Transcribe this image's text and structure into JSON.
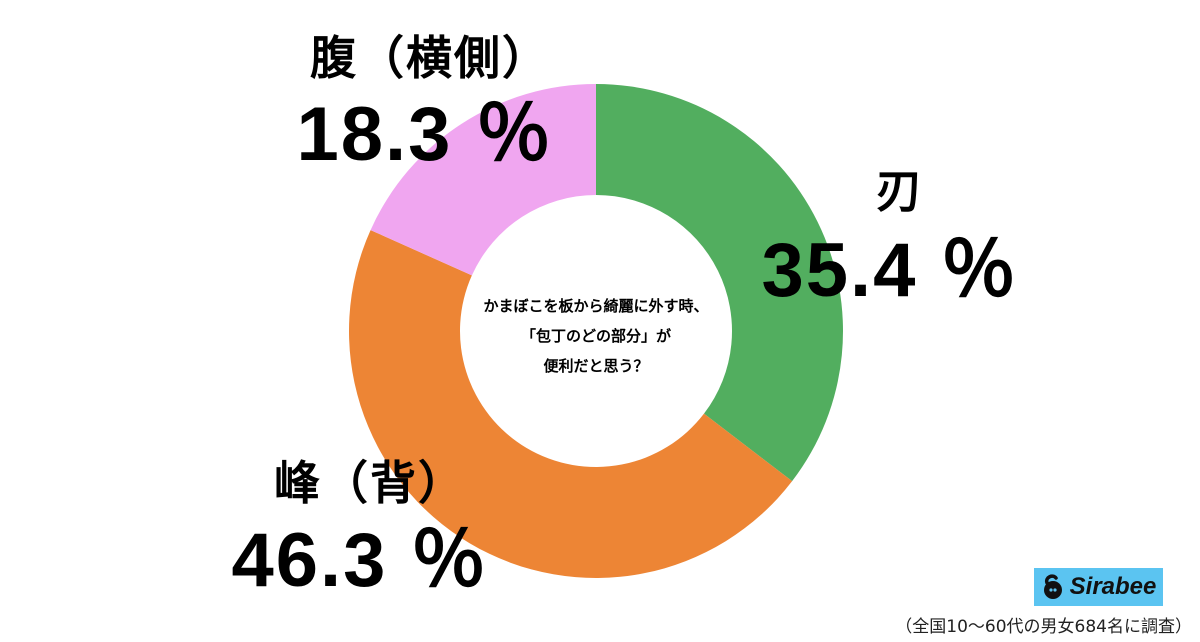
{
  "chart_data": {
    "type": "pie",
    "variant": "donut",
    "title": "かまぼこを板から綺麗に外す時、「包丁のどの部分」が便利だと思う？",
    "categories": [
      "刃",
      "峰（背）",
      "腹（横側）"
    ],
    "values": [
      35.4,
      46.3,
      18.3
    ],
    "unit": "%",
    "colors": [
      "#52ae5f",
      "#ed8535",
      "#f0a6f0"
    ],
    "start_angle_deg": 0,
    "direction": "clockwise",
    "legend": "none",
    "note": "（全国10〜60代の男女684名に調査）"
  },
  "center_question": {
    "line1": "かまぼこを板から綺麗に外す時、",
    "line2": "「包丁のどの部分」が",
    "line3": "便利だと思う？"
  },
  "labels": {
    "blade": {
      "name": "刃",
      "pct": "35.4 ％"
    },
    "spine": {
      "name": "峰（背）",
      "pct": "46.3 ％"
    },
    "side": {
      "name": "腹（横側）",
      "pct": "18.3 ％"
    }
  },
  "brand": {
    "name": "Sirabee",
    "color": "#5bc4f1"
  },
  "footnote": "（全国10〜60代の男女684名に調査）"
}
